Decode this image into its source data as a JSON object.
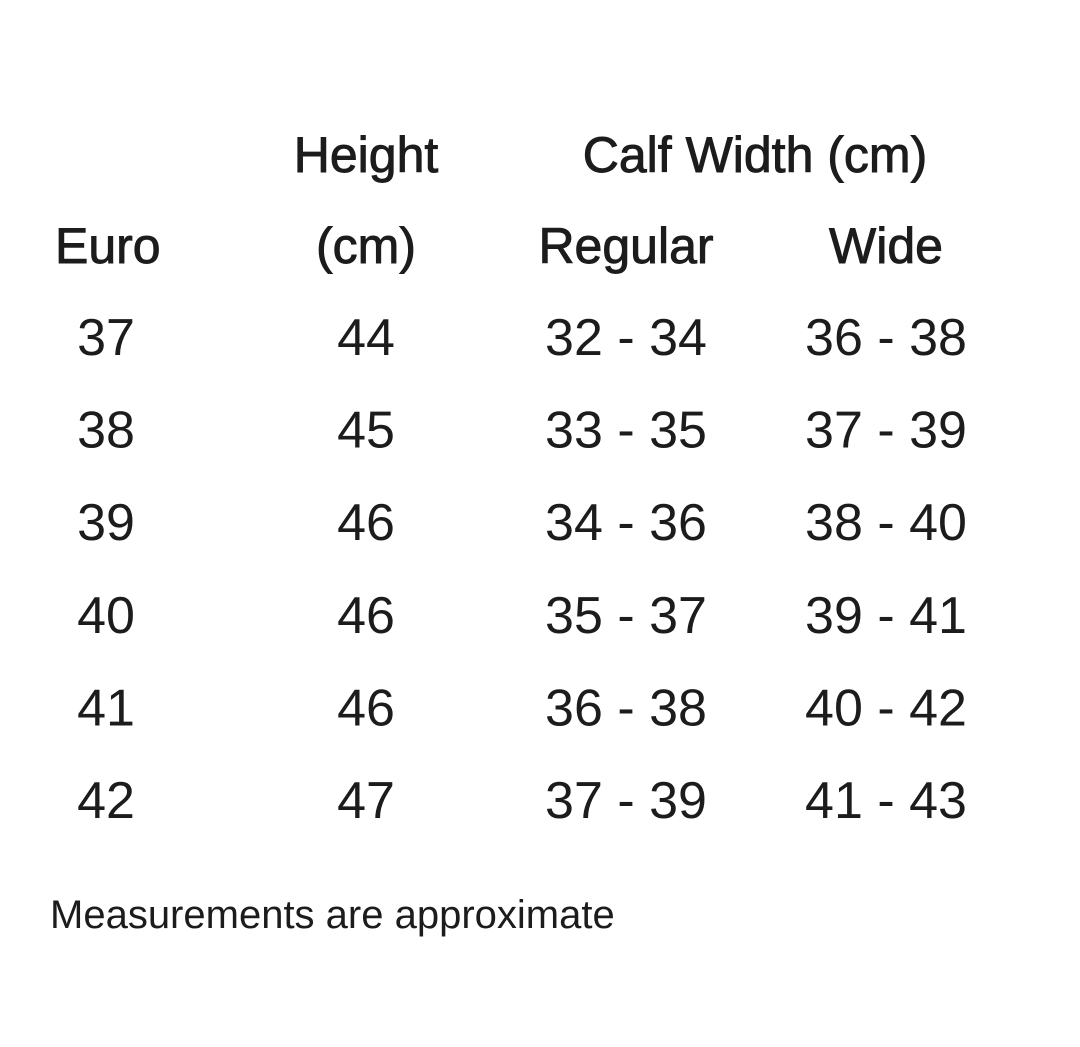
{
  "header": {
    "height_line1": "Height",
    "height_line2": "(cm)",
    "calf_width": "Calf Width (cm)",
    "euro": "Euro",
    "regular": "Regular",
    "wide": "Wide"
  },
  "table": {
    "rows": [
      [
        37,
        44,
        "32 - 34",
        "36 - 38"
      ],
      [
        38,
        45,
        "33 - 35",
        "37 - 39"
      ],
      [
        39,
        46,
        "34 - 36",
        "38 - 40"
      ],
      [
        40,
        46,
        "35 - 37",
        "39 - 41"
      ],
      [
        41,
        46,
        "36 - 38",
        "40 - 42"
      ],
      [
        42,
        47,
        "37 - 39",
        "41 - 43"
      ]
    ]
  },
  "footnote": "Measurements are approximate"
}
